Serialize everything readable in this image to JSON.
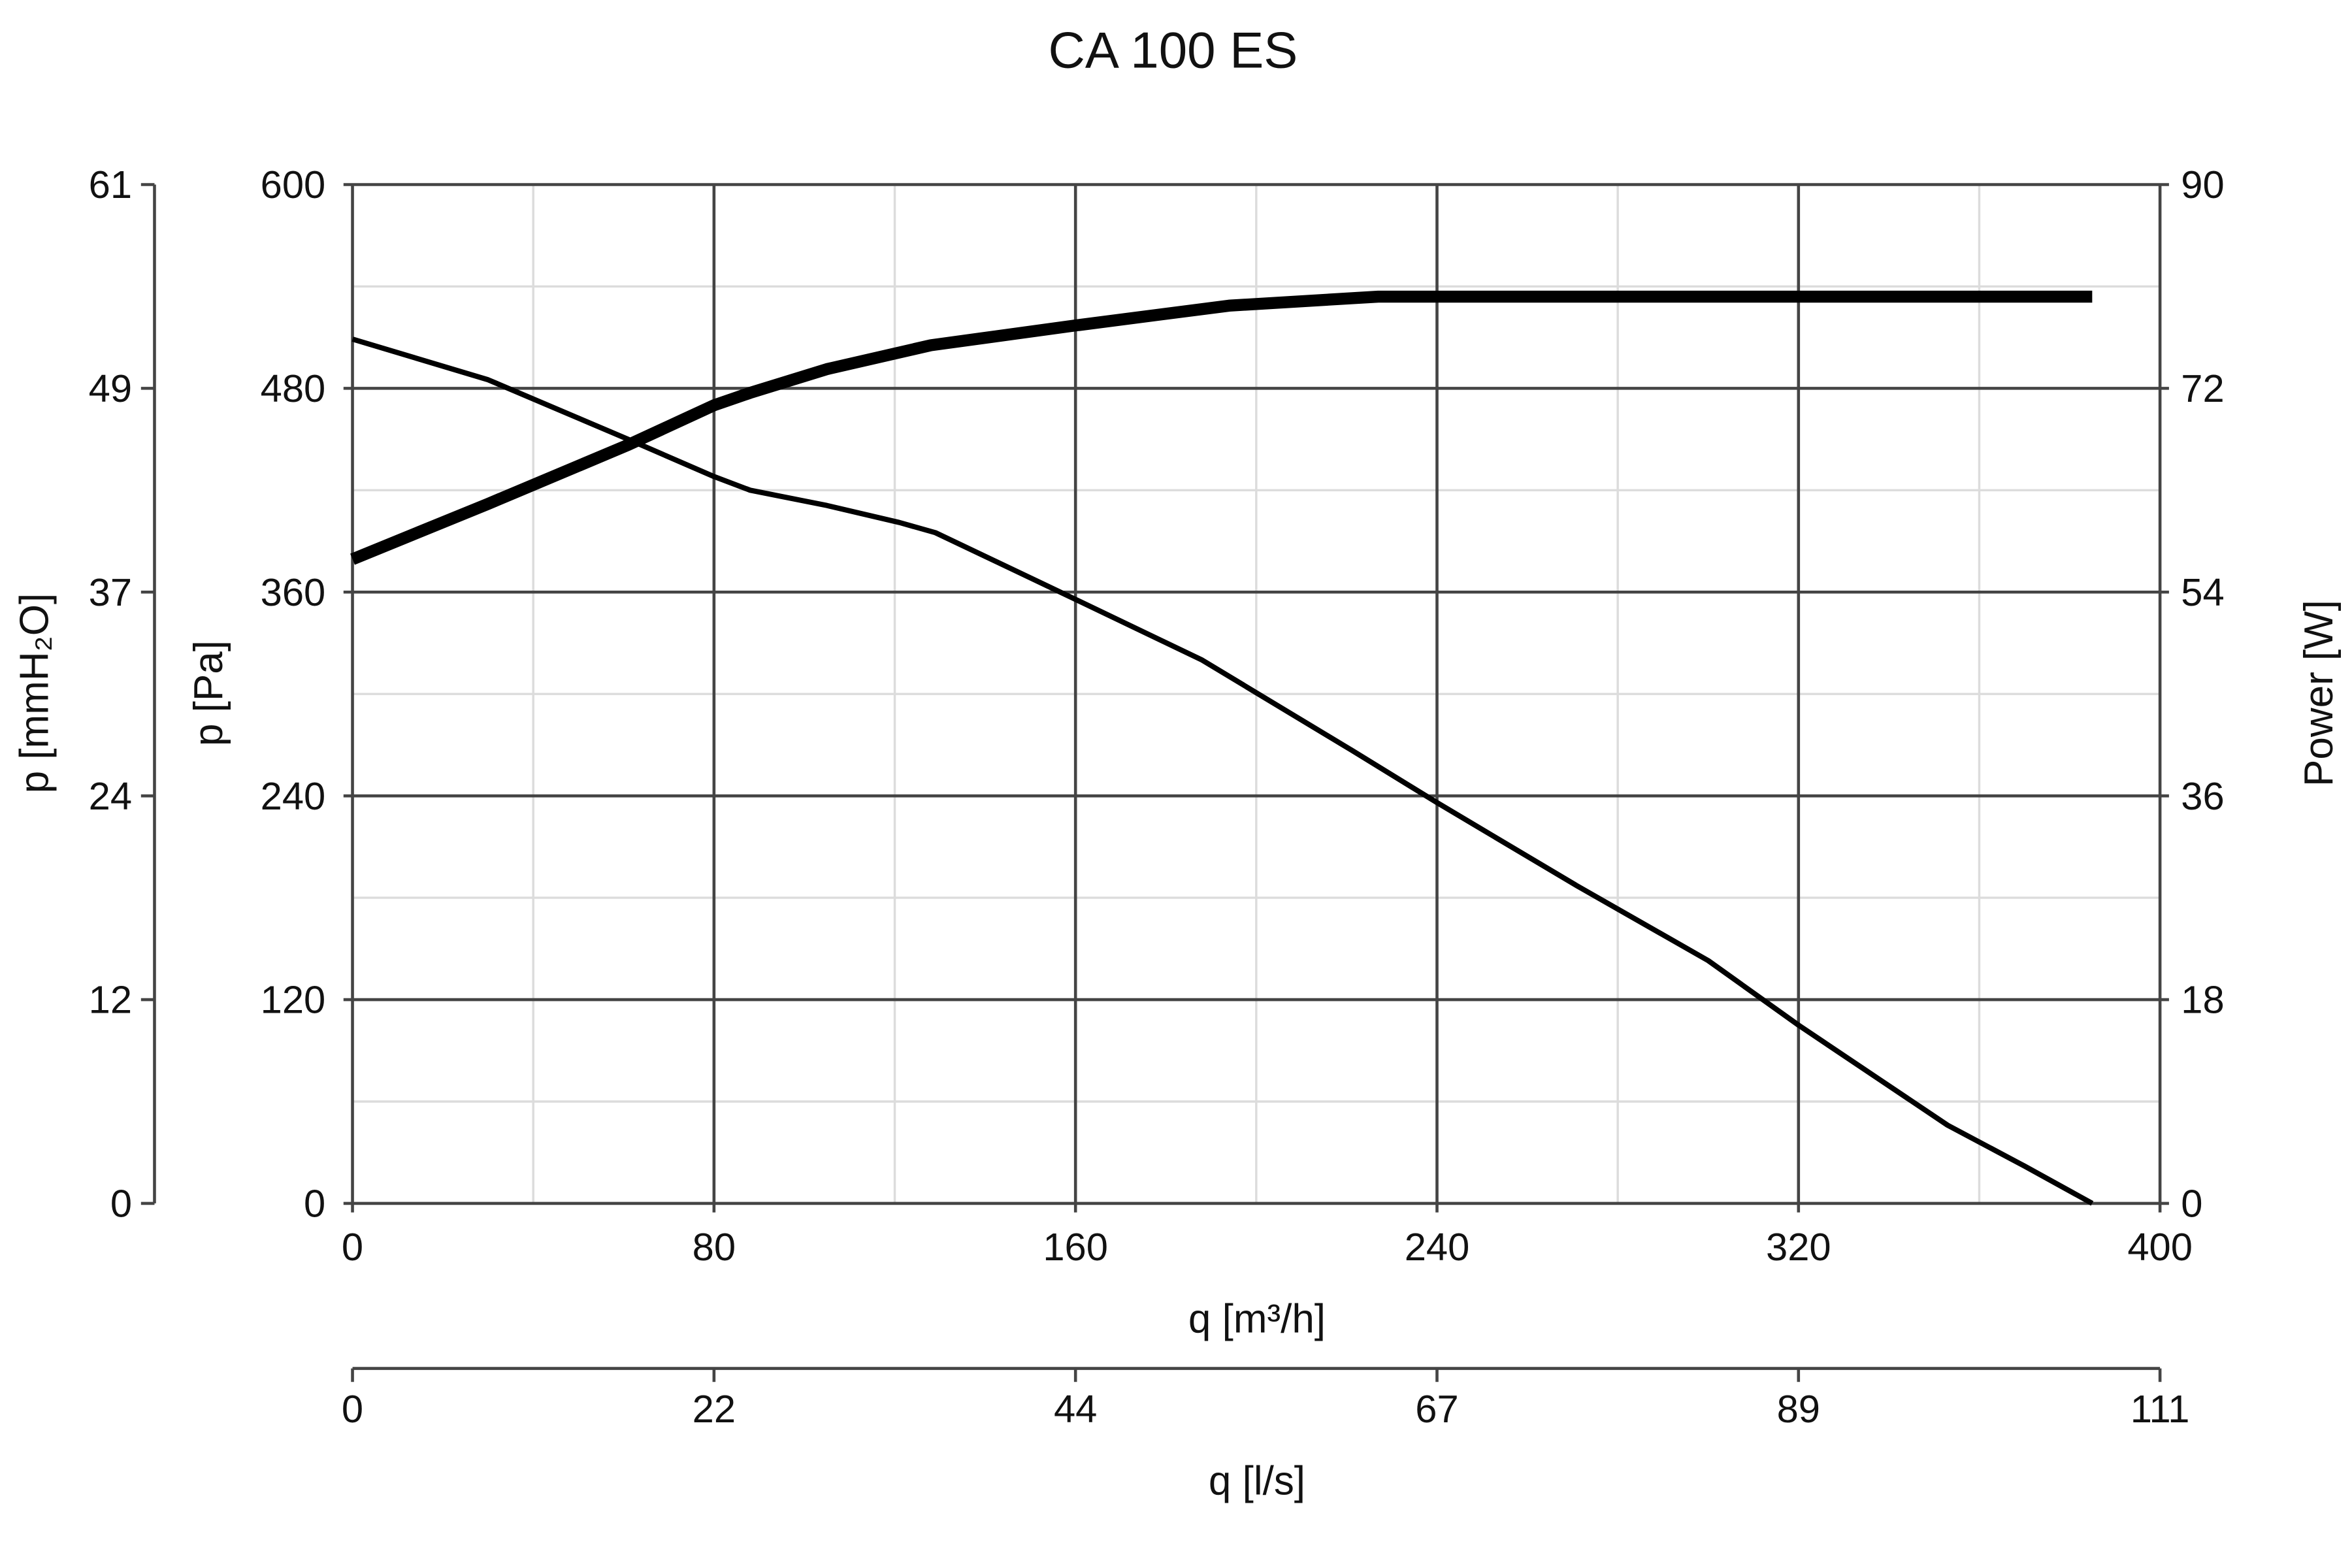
{
  "chart_data": {
    "type": "line",
    "title": "CA 100 ES",
    "xlabel": "q [m³/h]",
    "x2label": "q [l/s]",
    "ylabel": "p [Pa]",
    "ylabel_alt": "p [mmH₂O]",
    "y2label": "Power [W]",
    "xlim": [
      0,
      400
    ],
    "ylim": [
      0,
      600
    ],
    "y2lim": [
      0,
      90
    ],
    "grid": true,
    "x_ticks": [
      "0",
      "80",
      "160",
      "240",
      "320",
      "400"
    ],
    "x2_ticks": [
      "0",
      "22",
      "44",
      "67",
      "89",
      "111"
    ],
    "y_ticks": [
      "0",
      "120",
      "240",
      "360",
      "480",
      "600"
    ],
    "y_alt_ticks": [
      "0",
      "12",
      "24",
      "37",
      "49",
      "61"
    ],
    "y2_ticks": [
      "0",
      "18",
      "36",
      "54",
      "72",
      "90"
    ],
    "series": [
      {
        "axis": "pressure",
        "color": "#000000",
        "points": [
          [
            0,
            509
          ],
          [
            30,
            485
          ],
          [
            61,
            450
          ],
          [
            80,
            428
          ],
          [
            88,
            420
          ],
          [
            105,
            411
          ],
          [
            121,
            401
          ],
          [
            129,
            395
          ],
          [
            159,
            357
          ],
          [
            188,
            320
          ],
          [
            221,
            267
          ],
          [
            240,
            236
          ],
          [
            271,
            187
          ],
          [
            300,
            143
          ],
          [
            320,
            105
          ],
          [
            353,
            46
          ],
          [
            370,
            22
          ],
          [
            385,
            0
          ]
        ]
      },
      {
        "axis": "power",
        "color": "#000000",
        "points": [
          [
            0,
            56.9
          ],
          [
            30,
            61.8
          ],
          [
            61,
            67
          ],
          [
            80,
            70.5
          ],
          [
            88,
            71.6
          ],
          [
            105,
            73.7
          ],
          [
            128,
            75.8
          ],
          [
            159,
            77.5
          ],
          [
            194,
            79.3
          ],
          [
            227,
            80.1
          ],
          [
            300,
            80.1
          ],
          [
            385,
            80.1
          ]
        ]
      }
    ]
  }
}
